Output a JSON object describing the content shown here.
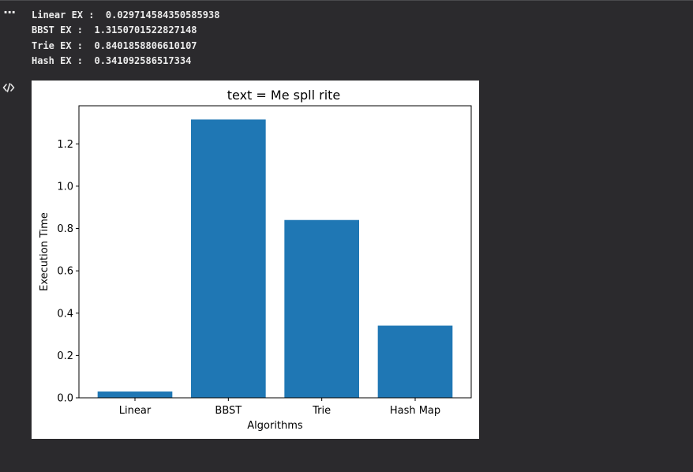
{
  "gutter": {
    "more_icon": "more-horizontal-icon",
    "code_icon": "code-icon"
  },
  "output": {
    "lines": [
      "Linear EX :  0.029714584350585938",
      "BBST EX :  1.3150701522827148",
      "Trie EX :  0.8401858806610107",
      "Hash EX :  0.341092586517334"
    ]
  },
  "colors": {
    "background": "#2b2a2d",
    "bar": "#1f77b4",
    "text_light": "#ececec"
  },
  "chart_data": {
    "type": "bar",
    "title": "text = Me spll rite",
    "xlabel": "Algorithms",
    "ylabel": "Execution Time",
    "categories": [
      "Linear",
      "BBST",
      "Trie",
      "Hash Map"
    ],
    "values": [
      0.029714584350585938,
      1.3150701522827148,
      0.8401858806610107,
      0.341092586517334
    ],
    "yticks": [
      "0.0",
      "0.2",
      "0.4",
      "0.6",
      "0.8",
      "1.0",
      "1.2"
    ],
    "ylim": [
      0,
      1.38
    ],
    "grid": false,
    "legend": "none"
  }
}
